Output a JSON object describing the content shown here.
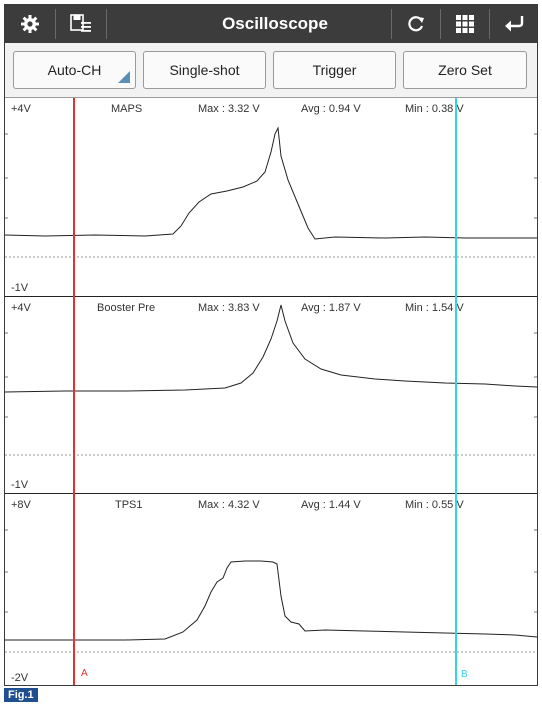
{
  "header": {
    "title": "Oscilloscope",
    "icons": [
      "gear-icon",
      "save-list-icon",
      "refresh-icon",
      "grid-icon",
      "return-icon"
    ]
  },
  "toolbar": {
    "auto_ch": "Auto-CH",
    "single_shot": "Single-shot",
    "trigger": "Trigger",
    "zero_set": "Zero Set"
  },
  "channels": [
    {
      "top_label": "+4V",
      "bottom_label": "-1V",
      "name": "MAPS",
      "max": "Max : 3.32 V",
      "avg": "Avg : 0.94 V",
      "min": "Min : 0.38 V"
    },
    {
      "top_label": "+4V",
      "bottom_label": "-1V",
      "name": "Booster Pre",
      "max": "Max : 3.83 V",
      "avg": "Avg : 1.87 V",
      "min": "Min : 1.54 V"
    },
    {
      "top_label": "+8V",
      "bottom_label": "-2V",
      "name": "TPS1",
      "max": "Max : 4.32 V",
      "avg": "Avg : 1.44 V",
      "min": "Min : 0.55 V"
    }
  ],
  "cursors": {
    "a_label": "A",
    "a_color": "#e53030",
    "b_label": "B",
    "b_color": "#35d3e8"
  },
  "figure_label": "Fig.1"
}
